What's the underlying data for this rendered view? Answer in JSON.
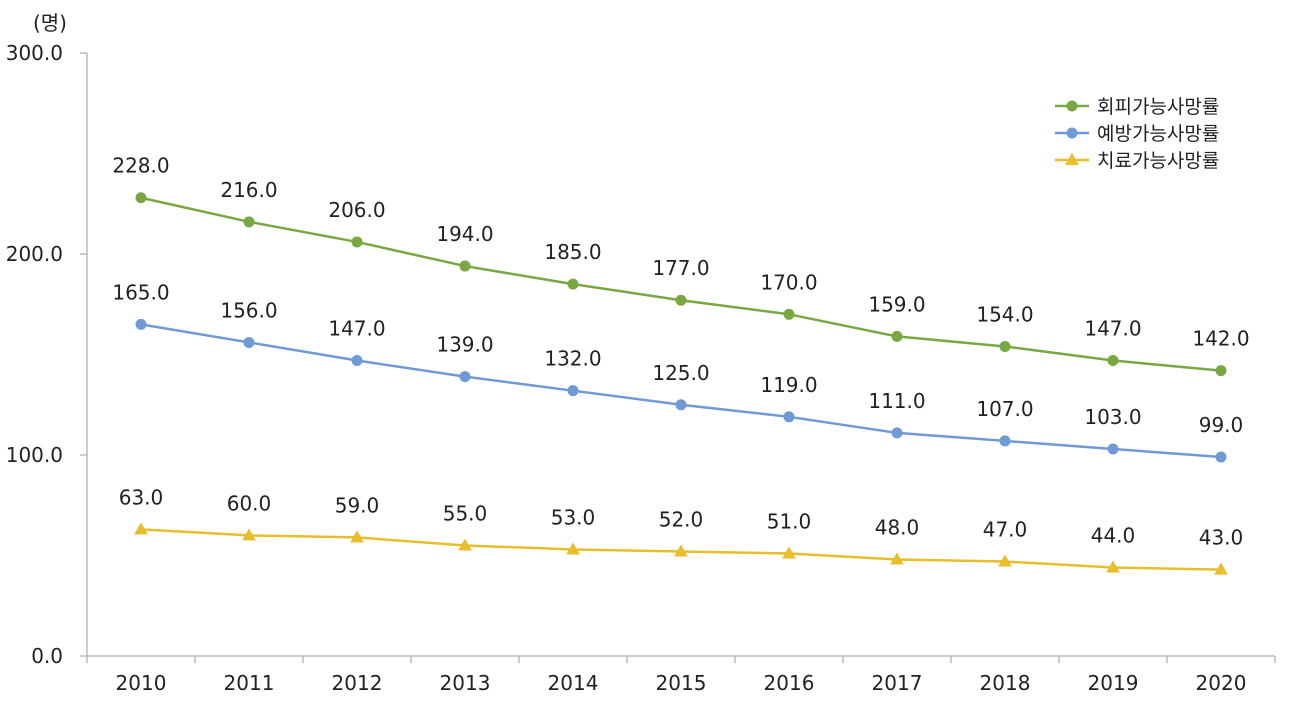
{
  "chart_data": {
    "type": "line",
    "unit_label": "(명)",
    "categories": [
      "2010",
      "2011",
      "2012",
      "2013",
      "2014",
      "2015",
      "2016",
      "2017",
      "2018",
      "2019",
      "2020"
    ],
    "ylim": [
      0,
      300
    ],
    "yticks": [
      "0.0",
      "100.0",
      "200.0",
      "300.0"
    ],
    "ytick_values": [
      0,
      100,
      200,
      300
    ],
    "grid": false,
    "legend_position": "top-right",
    "series": [
      {
        "name": "회피가능사망률",
        "color": "#79A843",
        "marker": "circle",
        "values": [
          228.0,
          216.0,
          206.0,
          194.0,
          185.0,
          177.0,
          170.0,
          159.0,
          154.0,
          147.0,
          142.0
        ],
        "labels": [
          "228.0",
          "216.0",
          "206.0",
          "194.0",
          "185.0",
          "177.0",
          "170.0",
          "159.0",
          "154.0",
          "147.0",
          "142.0"
        ]
      },
      {
        "name": "예방가능사망률",
        "color": "#6F9AD6",
        "marker": "circle",
        "values": [
          165.0,
          156.0,
          147.0,
          139.0,
          132.0,
          125.0,
          119.0,
          111.0,
          107.0,
          103.0,
          99.0
        ],
        "labels": [
          "165.0",
          "156.0",
          "147.0",
          "139.0",
          "132.0",
          "125.0",
          "119.0",
          "111.0",
          "107.0",
          "103.0",
          "99.0"
        ]
      },
      {
        "name": "치료가능사망률",
        "color": "#E8BE2A",
        "marker": "triangle",
        "values": [
          63.0,
          60.0,
          59.0,
          55.0,
          53.0,
          52.0,
          51.0,
          48.0,
          47.0,
          44.0,
          43.0
        ],
        "labels": [
          "63.0",
          "60.0",
          "59.0",
          "55.0",
          "53.0",
          "52.0",
          "51.0",
          "48.0",
          "47.0",
          "44.0",
          "43.0"
        ]
      }
    ]
  }
}
